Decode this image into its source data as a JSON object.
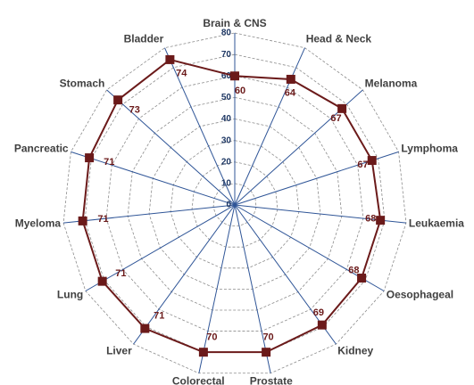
{
  "chart_data": {
    "type": "radar",
    "categories": [
      "Brain & CNS",
      "Head & Neck",
      "Melanoma",
      "Lymphoma",
      "Leukaemia",
      "Oesophageal",
      "Kidney",
      "Prostate",
      "Colorectal",
      "Liver",
      "Lung",
      "Myeloma",
      "Pancreatic",
      "Stomach",
      "Bladder"
    ],
    "values": [
      60,
      64,
      67,
      67,
      68,
      68,
      69,
      70,
      70,
      71,
      71,
      71,
      71,
      73,
      74
    ],
    "color": "#6b1a1a",
    "ylim": [
      0,
      80
    ],
    "yticks": [
      0,
      10,
      20,
      30,
      40,
      50,
      60,
      70,
      80
    ],
    "grid": true
  }
}
